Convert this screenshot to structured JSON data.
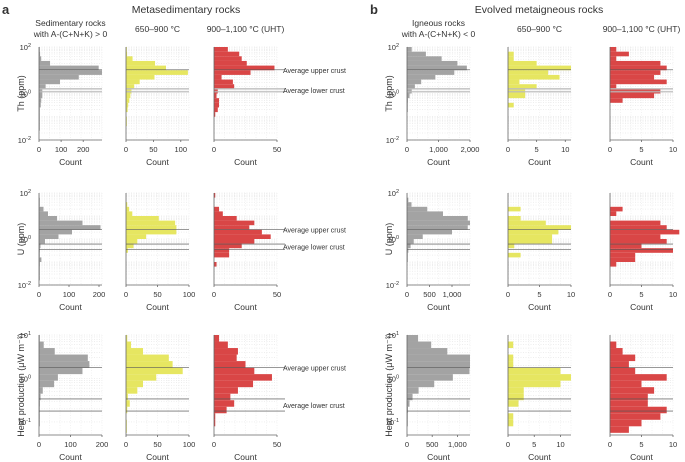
{
  "panel_labels": {
    "a": "a",
    "b": "b"
  },
  "group_titles": {
    "a": "Metasedimentary rocks",
    "b": "Evolved metaigneous rocks"
  },
  "column_titles": {
    "a": [
      [
        "Sedimentary rocks",
        "with A-(C+N+K) > 0"
      ],
      [
        "650–900 °C"
      ],
      [
        "900–1,100 °C (UHT)"
      ]
    ],
    "b": [
      [
        "Igneous rocks",
        "with A-(C+N+K) < 0"
      ],
      [
        "650–900 °C"
      ],
      [
        "900–1,100 °C (UHT)"
      ]
    ]
  },
  "reference_lines": {
    "upper": "Average upper crust",
    "lower": "Average lower crust"
  },
  "colors": {
    "protolith": "#a3a3a3",
    "mid": "#e6e661",
    "uht": "#d94646",
    "line_dark": "#555555",
    "line_light": "#bbbbbb"
  },
  "chart_data": [
    {
      "type": "bar",
      "orientation": "horizontal-histogram",
      "row": "Th",
      "ylabel": "Th (ppm)",
      "yscale": "log",
      "ylim_log10": [
        -2,
        2
      ],
      "yticks": [
        "10^-2",
        "10^0",
        "10^2"
      ],
      "xlabel": "Count",
      "reference_log10": {
        "upper": 1.02,
        "lower": [
          0.2,
          0.08
        ]
      },
      "bin_edges_log10": [
        2.0,
        1.8,
        1.6,
        1.4,
        1.2,
        1.0,
        0.8,
        0.6,
        0.4,
        0.2,
        0.0,
        -0.2,
        -0.4,
        -0.6,
        -0.8,
        -1.0,
        -1.2,
        -1.4,
        -1.6
      ],
      "panels": [
        {
          "group": "a",
          "col": 0,
          "color": "protolith",
          "xlim": [
            0,
            285
          ],
          "xticks": [
            0,
            100,
            200
          ],
          "xticklabels": [
            "0",
            "100",
            "200"
          ],
          "counts": [
            3,
            5,
            10,
            50,
            270,
            285,
            180,
            95,
            30,
            15,
            15,
            10,
            8,
            2,
            1,
            1,
            1,
            1
          ]
        },
        {
          "group": "a",
          "col": 1,
          "color": "mid",
          "xlim": [
            0,
            115
          ],
          "xticks": [
            0,
            50,
            100
          ],
          "xticklabels": [
            "0",
            "50",
            "100"
          ],
          "counts": [
            1,
            2,
            12,
            53,
            73,
            113,
            52,
            25,
            15,
            10,
            8,
            6,
            4,
            3,
            0,
            1,
            1,
            0
          ]
        },
        {
          "group": "a",
          "col": 2,
          "color": "uht",
          "xlim": [
            0,
            50
          ],
          "xticks": [
            0,
            50
          ],
          "xticklabels": [
            "0",
            "50"
          ],
          "counts": [
            11,
            20,
            22,
            26,
            48,
            29,
            6,
            15,
            16,
            3,
            2,
            4,
            4,
            3,
            1,
            0,
            0,
            0
          ]
        },
        {
          "group": "b",
          "col": 0,
          "color": "protolith",
          "xlim": [
            0,
            2000
          ],
          "xticks": [
            0,
            1000,
            2000
          ],
          "xticklabels": [
            "0",
            "1,000",
            "2,000"
          ],
          "counts": [
            150,
            600,
            1100,
            1600,
            1900,
            1500,
            900,
            450,
            250,
            150,
            80,
            30,
            10,
            5,
            0,
            0,
            0,
            0
          ]
        },
        {
          "group": "b",
          "col": 1,
          "color": "mid",
          "xlim": [
            0,
            11
          ],
          "xticks": [
            0,
            5,
            10
          ],
          "xticklabels": [
            "0",
            "5",
            "10"
          ],
          "counts": [
            0,
            1,
            1,
            5,
            11,
            7,
            9,
            2,
            5,
            3,
            3,
            0,
            1,
            0,
            0,
            0,
            0,
            0
          ]
        },
        {
          "group": "b",
          "col": 2,
          "color": "uht",
          "xlim": [
            0,
            10
          ],
          "xticks": [
            0,
            5,
            10
          ],
          "xticklabels": [
            "0",
            "5",
            "10"
          ],
          "counts": [
            1,
            3,
            1,
            8,
            9,
            8,
            7,
            9,
            1,
            8,
            7,
            2,
            0,
            0,
            0,
            0,
            0,
            0
          ]
        }
      ]
    },
    {
      "type": "bar",
      "orientation": "horizontal-histogram",
      "row": "U",
      "ylabel": "U (ppm)",
      "yscale": "log",
      "ylim_log10": [
        -2,
        2
      ],
      "yticks": [
        "10^-2",
        "10^0",
        "10^2"
      ],
      "xlabel": "Count",
      "reference_log10": {
        "upper": 0.42,
        "lower": [
          -0.22,
          -0.45
        ]
      },
      "bin_edges_log10": [
        2.0,
        1.8,
        1.6,
        1.4,
        1.2,
        1.0,
        0.8,
        0.6,
        0.4,
        0.2,
        0.0,
        -0.2,
        -0.4,
        -0.6,
        -0.8,
        -1.0,
        -1.2,
        -1.4,
        -1.6,
        -1.8
      ],
      "panels": [
        {
          "group": "a",
          "col": 0,
          "color": "protolith",
          "xlim": [
            0,
            210
          ],
          "xticks": [
            0,
            100,
            200
          ],
          "xticklabels": [
            "0",
            "100",
            "200"
          ],
          "counts": [
            0,
            1,
            2,
            15,
            30,
            60,
            145,
            205,
            110,
            65,
            20,
            5,
            3,
            2,
            8,
            3,
            1,
            1,
            1
          ]
        },
        {
          "group": "a",
          "col": 1,
          "color": "mid",
          "xlim": [
            0,
            100
          ],
          "xticks": [
            0,
            50,
            100
          ],
          "xticklabels": [
            "0",
            "50",
            "100"
          ],
          "counts": [
            0,
            0,
            2,
            5,
            10,
            52,
            78,
            80,
            80,
            32,
            18,
            12,
            3,
            0,
            0,
            0,
            0,
            0,
            0
          ]
        },
        {
          "group": "a",
          "col": 2,
          "color": "uht",
          "xlim": [
            0,
            50
          ],
          "xticks": [
            0,
            50
          ],
          "xticklabels": [
            "0",
            "50"
          ],
          "counts": [
            1,
            0,
            0,
            4,
            7,
            18,
            32,
            28,
            38,
            45,
            32,
            22,
            12,
            12,
            0,
            2,
            0,
            0,
            0
          ]
        },
        {
          "group": "b",
          "col": 0,
          "color": "protolith",
          "xlim": [
            0,
            1400
          ],
          "xticks": [
            0,
            500,
            1000
          ],
          "xticklabels": [
            "0",
            "500",
            "1,000"
          ],
          "counts": [
            0,
            30,
            100,
            450,
            800,
            1350,
            1400,
            1350,
            1000,
            350,
            150,
            80,
            30,
            15,
            10,
            0,
            0,
            0,
            0
          ]
        },
        {
          "group": "b",
          "col": 1,
          "color": "mid",
          "xlim": [
            0,
            10
          ],
          "xticks": [
            0,
            5,
            10
          ],
          "xticklabels": [
            "0",
            "5",
            "10"
          ],
          "counts": [
            0,
            0,
            0,
            2,
            0,
            2,
            6,
            10,
            8,
            7,
            7,
            1,
            0,
            2,
            0,
            0,
            0,
            0,
            0
          ]
        },
        {
          "group": "b",
          "col": 2,
          "color": "uht",
          "xlim": [
            0,
            10
          ],
          "xticks": [
            0,
            5,
            10
          ],
          "xticklabels": [
            "0",
            "5",
            "10"
          ],
          "counts": [
            0,
            0,
            0,
            2,
            1,
            0,
            8,
            9,
            11,
            8,
            9,
            5,
            10,
            4,
            4,
            1,
            0,
            0,
            0
          ]
        }
      ]
    },
    {
      "type": "bar",
      "orientation": "horizontal-histogram",
      "row": "Heat production",
      "ylabel": "Heat production (μW m⁻³)",
      "yscale": "log",
      "ylim_log10": [
        -1.3,
        1
      ],
      "yticks": [
        "10^-1",
        "10^0",
        "10^1"
      ],
      "xlabel": "Count",
      "reference_log10": {
        "upper": 0.25,
        "lower": [
          -0.47,
          -0.75
        ]
      },
      "bin_edges_log10": [
        1.0,
        0.85,
        0.7,
        0.55,
        0.4,
        0.25,
        0.1,
        -0.05,
        -0.2,
        -0.35,
        -0.5,
        -0.65,
        -0.8,
        -0.95,
        -1.1,
        -1.25
      ],
      "panels": [
        {
          "group": "a",
          "col": 0,
          "color": "protolith",
          "xlim": [
            0,
            200
          ],
          "xticks": [
            0,
            100,
            200
          ],
          "xticklabels": [
            "0",
            "100",
            "200"
          ],
          "counts": [
            2,
            15,
            50,
            155,
            160,
            138,
            60,
            48,
            12,
            5,
            3,
            2,
            1,
            1,
            0
          ]
        },
        {
          "group": "a",
          "col": 1,
          "color": "mid",
          "xlim": [
            0,
            100
          ],
          "xticks": [
            0,
            50,
            100
          ],
          "xticklabels": [
            "0",
            "50",
            "100"
          ],
          "counts": [
            2,
            8,
            27,
            68,
            74,
            90,
            48,
            27,
            18,
            3,
            6,
            2,
            0,
            1,
            1
          ]
        },
        {
          "group": "a",
          "col": 2,
          "color": "uht",
          "xlim": [
            0,
            50
          ],
          "xticks": [
            0,
            50
          ],
          "xticklabels": [
            "0",
            "50"
          ],
          "counts": [
            4,
            11,
            19,
            18,
            25,
            32,
            46,
            31,
            19,
            13,
            16,
            10,
            1,
            1,
            0
          ]
        },
        {
          "group": "b",
          "col": 0,
          "color": "protolith",
          "xlim": [
            0,
            1250
          ],
          "xticks": [
            0,
            500,
            1000
          ],
          "xticklabels": [
            "0",
            "500",
            "1,000"
          ],
          "counts": [
            220,
            480,
            800,
            1250,
            1250,
            1240,
            910,
            540,
            230,
            110,
            50,
            20,
            10,
            5,
            0
          ]
        },
        {
          "group": "b",
          "col": 1,
          "color": "mid",
          "xlim": [
            0,
            12
          ],
          "xticks": [
            0,
            5,
            10
          ],
          "xticklabels": [
            "0",
            "5",
            "10"
          ],
          "counts": [
            0,
            1,
            0,
            1,
            1,
            10,
            12,
            10,
            3,
            3,
            2,
            0,
            1,
            1,
            0
          ]
        },
        {
          "group": "b",
          "col": 2,
          "color": "uht",
          "xlim": [
            0,
            10
          ],
          "xticks": [
            0,
            5,
            10
          ],
          "xticklabels": [
            "0",
            "5",
            "10"
          ],
          "counts": [
            0,
            1,
            2,
            4,
            3,
            4,
            9,
            5,
            7,
            6,
            6,
            9,
            8,
            5,
            3
          ]
        }
      ]
    }
  ]
}
